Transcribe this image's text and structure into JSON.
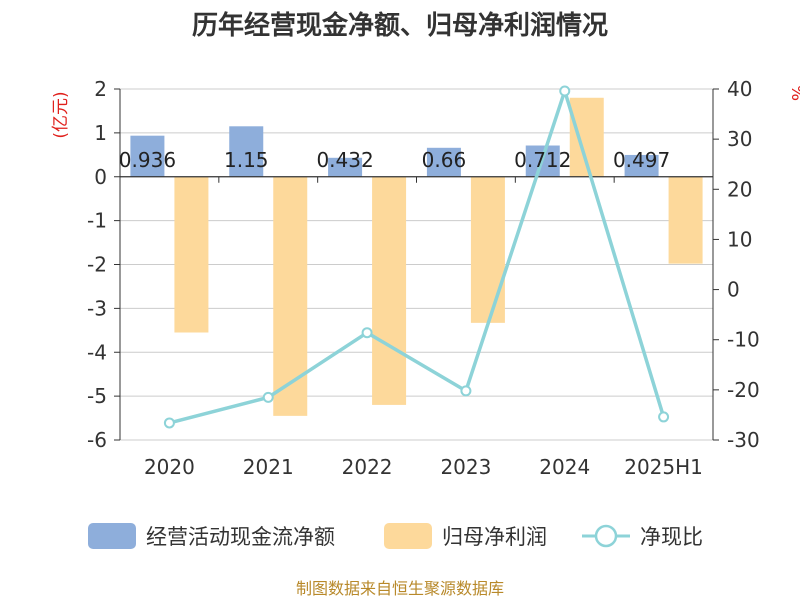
{
  "chart_data": {
    "type": "bar+line",
    "title": "历年经营现金净额、归母净利润情况",
    "categories": [
      "2020",
      "2021",
      "2022",
      "2023",
      "2024",
      "2025H1"
    ],
    "left_axis": {
      "unit": "(亿元)",
      "ylim": [
        -6,
        2
      ],
      "ticks": [
        2,
        1,
        0,
        -1,
        -2,
        -3,
        -4,
        -5,
        -6
      ]
    },
    "right_axis": {
      "unit": "%",
      "ylim": [
        -30,
        40
      ],
      "ticks": [
        40,
        30,
        20,
        10,
        0,
        -10,
        -20,
        -30
      ]
    },
    "series": [
      {
        "name": "经营活动现金流净额",
        "type": "bar",
        "axis": "left",
        "color": "#8eaedb",
        "values": [
          0.936,
          1.15,
          0.432,
          0.66,
          0.712,
          0.497
        ],
        "labels": [
          "0.936",
          "1.15",
          "0.432",
          "0.66",
          "0.712",
          "0.497"
        ]
      },
      {
        "name": "归母净利润",
        "type": "bar",
        "axis": "left",
        "color": "#fdd99b",
        "values": [
          -3.55,
          -5.45,
          -5.2,
          -3.33,
          1.8,
          -1.98
        ]
      },
      {
        "name": "净现比",
        "type": "line",
        "axis": "right",
        "color": "#8dd3d8",
        "values": [
          -26.6,
          -21.5,
          -8.6,
          -20.2,
          39.6,
          -25.4
        ]
      }
    ],
    "grid": true,
    "legend_position": "bottom"
  },
  "source": "制图数据来自恒生聚源数据库"
}
